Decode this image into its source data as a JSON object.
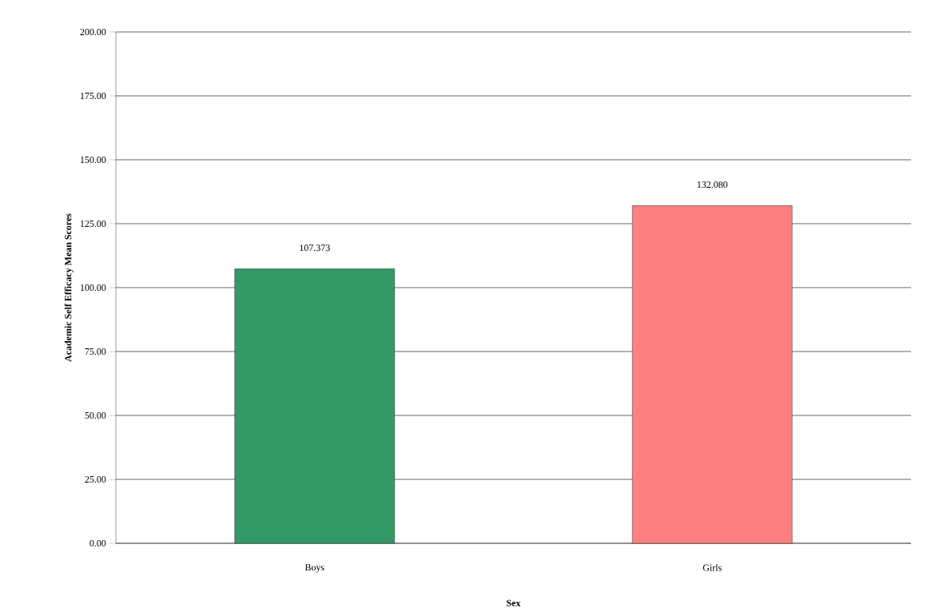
{
  "chart_data": {
    "type": "bar",
    "xlabel": "Sex",
    "ylabel": "Academic Self Efficacy Mean Scores",
    "categories": [
      "Boys",
      "Girls"
    ],
    "values": [
      107.373,
      132.08
    ],
    "value_labels": [
      "107.373",
      "132.080"
    ],
    "colors": [
      "#339966",
      "#ff8080"
    ],
    "ylim": [
      0,
      200
    ],
    "yticks": [
      {
        "value": 0,
        "label": "0.00"
      },
      {
        "value": 25,
        "label": "25.00"
      },
      {
        "value": 50,
        "label": "50.00"
      },
      {
        "value": 75,
        "label": "75.00"
      },
      {
        "value": 100,
        "label": "100.00"
      },
      {
        "value": 125,
        "label": "125.00"
      },
      {
        "value": 150,
        "label": "150.00"
      },
      {
        "value": 175,
        "label": "175.00"
      },
      {
        "value": 200,
        "label": "200.00"
      }
    ],
    "grid": "y"
  }
}
